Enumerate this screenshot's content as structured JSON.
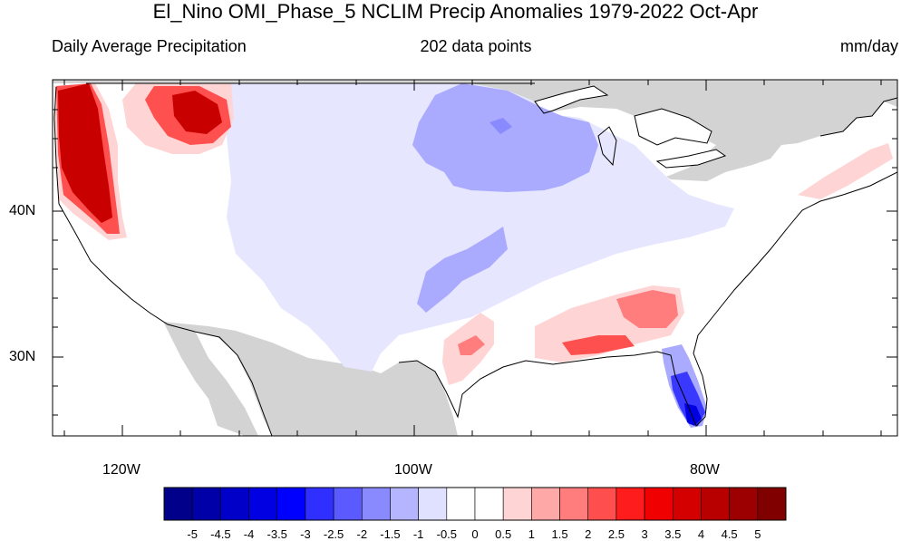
{
  "title": "El_Nino OMI_Phase_5 NCLIM Precip Anomalies 1979-2022 Oct-Apr",
  "subtitle_left": "Daily Average Precipitation",
  "subtitle_center": "202 data points",
  "subtitle_right": "mm/day",
  "lat_labels": [
    "40N",
    "30N"
  ],
  "lon_labels": [
    "120W",
    "100W",
    "80W"
  ],
  "colorbar": {
    "colors": [
      "#00008a",
      "#0000a8",
      "#0000c8",
      "#0000e2",
      "#0000ff",
      "#2f2fff",
      "#5a5aff",
      "#8a8aff",
      "#b4b4ff",
      "#e0e0ff",
      "#ffffff",
      "#ffffff",
      "#ffd4d4",
      "#ffa8a8",
      "#ff7d7d",
      "#ff4e4e",
      "#ff1c1c",
      "#f00000",
      "#d40000",
      "#b80000",
      "#9c0000",
      "#800000"
    ],
    "ticks": [
      "-5",
      "-4.5",
      "-4",
      "-3.5",
      "-3",
      "-2.5",
      "-2",
      "-1.5",
      "-1",
      "-0.5",
      "0",
      "0.5",
      "1",
      "1.5",
      "2",
      "2.5",
      "3",
      "3.5",
      "4",
      "4.5",
      "5"
    ]
  },
  "map_colors": {
    "land_masked": "#d3d3d3",
    "water": "#ffffff",
    "coast": "#000000",
    "pos_strong": "#c80000",
    "pos_mid": "#ff5050",
    "pos_light": "#ffd4d4",
    "neg_light": "#e6e6ff",
    "neg_mid": "#aaaaff",
    "neg_strong": "#3838ff"
  }
}
